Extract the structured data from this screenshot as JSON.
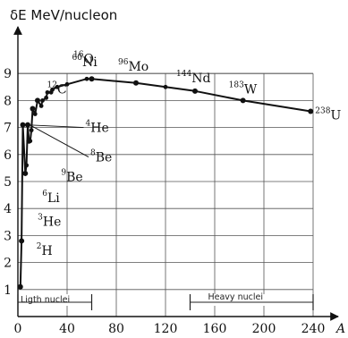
{
  "chart_data": {
    "type": "line",
    "ylabel": "δE MeV/nucleon",
    "xlabel": "A",
    "xlim": [
      0,
      240
    ],
    "ylim": [
      0,
      9
    ],
    "x_ticks": [
      0,
      40,
      80,
      120,
      160,
      200,
      240
    ],
    "y_ticks": [
      1,
      2,
      3,
      4,
      5,
      6,
      7,
      8,
      9
    ],
    "grid": true,
    "series": [
      {
        "values": [
          {
            "x": 2,
            "y": 1.1
          },
          {
            "x": 3,
            "y": 2.8
          },
          {
            "x": 4,
            "y": 7.1
          },
          {
            "x": 6,
            "y": 5.3
          },
          {
            "x": 7,
            "y": 5.6
          },
          {
            "x": 8,
            "y": 7.1
          },
          {
            "x": 9,
            "y": 6.5
          },
          {
            "x": 10,
            "y": 6.5
          },
          {
            "x": 11,
            "y": 6.9
          },
          {
            "x": 12,
            "y": 7.7
          },
          {
            "x": 14,
            "y": 7.5
          },
          {
            "x": 16,
            "y": 8.0
          },
          {
            "x": 19,
            "y": 7.8
          },
          {
            "x": 20,
            "y": 8.0
          },
          {
            "x": 23,
            "y": 8.1
          },
          {
            "x": 24,
            "y": 8.3
          },
          {
            "x": 27,
            "y": 8.3
          },
          {
            "x": 28,
            "y": 8.4
          },
          {
            "x": 32,
            "y": 8.5
          },
          {
            "x": 40,
            "y": 8.6
          },
          {
            "x": 56,
            "y": 8.8
          },
          {
            "x": 60,
            "y": 8.8
          },
          {
            "x": 96,
            "y": 8.65
          },
          {
            "x": 120,
            "y": 8.5
          },
          {
            "x": 144,
            "y": 8.35
          },
          {
            "x": 183,
            "y": 8.0
          },
          {
            "x": 238,
            "y": 7.6
          }
        ]
      }
    ],
    "annotations": [
      {
        "mass": "2",
        "symbol": "H",
        "x": 2,
        "y": 1.1
      },
      {
        "mass": "3",
        "symbol": "He",
        "x": 3,
        "y": 2.8
      },
      {
        "mass": "6",
        "symbol": "Li",
        "x": 6,
        "y": 5.3
      },
      {
        "mass": "9",
        "symbol": "Be",
        "x": 9,
        "y": 6.5
      },
      {
        "mass": "8",
        "symbol": "Be",
        "x": 8,
        "y": 7.1
      },
      {
        "mass": "4",
        "symbol": "He",
        "x": 4,
        "y": 7.1
      },
      {
        "mass": "12",
        "symbol": "C",
        "x": 12,
        "y": 7.7
      },
      {
        "mass": "16",
        "symbol": "O",
        "x": 16,
        "y": 8.0
      },
      {
        "mass": "60",
        "symbol": "Ni",
        "x": 60,
        "y": 8.8
      },
      {
        "mass": "96",
        "symbol": "Mo",
        "x": 96,
        "y": 8.65
      },
      {
        "mass": "144",
        "symbol": "Nd",
        "x": 144,
        "y": 8.35
      },
      {
        "mass": "183",
        "symbol": "W",
        "x": 183,
        "y": 8.0
      },
      {
        "mass": "238",
        "symbol": "U",
        "x": 238,
        "y": 7.6
      }
    ],
    "regions": [
      {
        "label": "Ligth nuclei",
        "x_start": 0,
        "x_end": 60
      },
      {
        "label": "Heavy nuclei",
        "x_start": 140,
        "x_end": 240
      }
    ]
  }
}
